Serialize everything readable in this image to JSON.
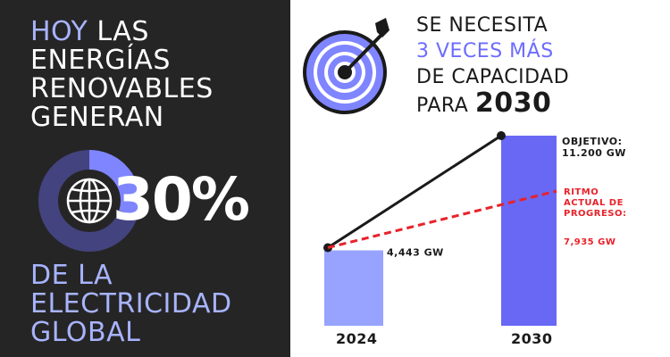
{
  "left_panel": {
    "headline_accent": "HOY",
    "headline_rest_1": " LAS",
    "headline_line2": "ENERGÍAS",
    "headline_line3": "RENOVABLES",
    "headline_line4": "GENERAN",
    "share_percent": 30,
    "percent_text": "30%",
    "bottom_line1": "DE LA",
    "bottom_line2": "ELECTRICIDAD",
    "bottom_line3": "GLOBAL",
    "globe_icon": "globe-icon"
  },
  "right_header": {
    "line1": "SE NECESITA",
    "line2": "3 VECES MÁS",
    "line3": "DE CAPACIDAD",
    "line4_prefix": "PARA",
    "line4_year": "2030",
    "target_icon": "target-arrow-icon"
  },
  "colors": {
    "dark_panel": "#262525",
    "accent_light": "#a7b4ff",
    "accent": "#6c6cff",
    "bar_2024": "#97a3ff",
    "bar_2030": "#6868f5",
    "red_dashed": "#e8222a",
    "black_line": "#1a1a1a"
  },
  "chart_data": {
    "type": "bar",
    "categories": [
      "2024",
      "2030"
    ],
    "values": [
      4443,
      11200
    ],
    "value_labels": [
      "4,443 GW",
      "OBJETIVO:\n11.200 GW"
    ],
    "trend_projection": {
      "label": "RITMO\nACTUAL DE\nPROGRESO:",
      "value": 7935,
      "value_label": "7,935 GW"
    },
    "ylim": [
      0,
      11200
    ],
    "grid": false
  }
}
